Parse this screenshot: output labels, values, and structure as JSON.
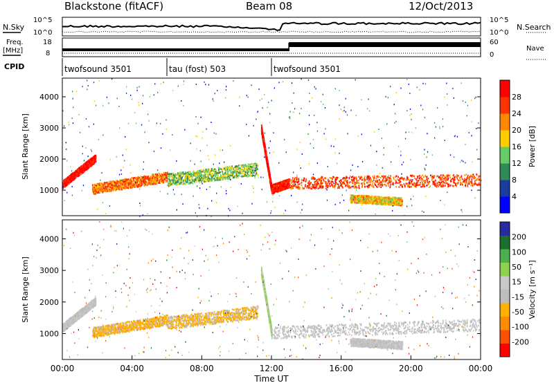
{
  "header": {
    "station": "Blackstone (fitACF)",
    "beam": "Beam 08",
    "date": "12/Oct/2013"
  },
  "side_labels": {
    "nsky": "N.Sky",
    "nsearch": "N.Search",
    "freq": "Freq.",
    "mhz": "[MHz]",
    "nave": "Nave",
    "cpid": "CPID"
  },
  "noise_axis": {
    "left_ticks": [
      "10^5",
      "10^0"
    ],
    "right_ticks": [
      "10^5",
      "10^0"
    ]
  },
  "freq_axis": {
    "left_ticks": [
      "18",
      "8"
    ],
    "right_ticks": [
      "60",
      "0"
    ]
  },
  "cpid_segments": [
    {
      "label": "twofsound 3501",
      "start_hour": 0
    },
    {
      "label": "tau (fost) 503",
      "start_hour": 6
    },
    {
      "label": "twofsound 3501",
      "start_hour": 12
    }
  ],
  "colors": {
    "power": [
      "#0000ff",
      "#1a3c9c",
      "#2e8b57",
      "#66cc66",
      "#ffcc00",
      "#ff8800",
      "#ff3300",
      "#ff0000"
    ],
    "velocity": [
      "#2a2aa0",
      "#1c6e2e",
      "#4caf50",
      "#8fd14f",
      "#c8c8c8",
      "#bdbdbd",
      "#ffb000",
      "#ff8c00",
      "#ff5000",
      "#ff0000"
    ],
    "ground_scatter": "#9e9e9e"
  },
  "chart_data": [
    {
      "type": "heatmap",
      "name": "power",
      "xlabel": "",
      "ylabel": "Slant Range [km]",
      "xlim": [
        0,
        24
      ],
      "ylim": [
        180,
        4600
      ],
      "yticks": [
        1000,
        2000,
        3000,
        4000
      ],
      "colorbar": {
        "label": "Power [dB]",
        "ticks": [
          "4",
          "8",
          "12",
          "16",
          "20",
          "24",
          "28"
        ],
        "range": [
          0,
          30
        ]
      },
      "bands": [
        {
          "from": [
            0.0,
            1200
          ],
          "to": [
            1.9,
            2050
          ],
          "width": 250,
          "value": 28
        },
        {
          "from": [
            1.7,
            1050
          ],
          "to": [
            6.0,
            1450
          ],
          "width": 320,
          "value": 22
        },
        {
          "from": [
            6.0,
            1350
          ],
          "to": [
            11.2,
            1700
          ],
          "width": 400,
          "value": 13
        },
        {
          "from": [
            11.4,
            3000
          ],
          "to": [
            12.0,
            1050
          ],
          "width": 250,
          "value": 29
        },
        {
          "from": [
            12.0,
            1050
          ],
          "to": [
            13.0,
            1250
          ],
          "width": 280,
          "value": 27
        },
        {
          "from": [
            13.0,
            1250
          ],
          "to": [
            24.0,
            1350
          ],
          "width": 380,
          "value": 24
        },
        {
          "from": [
            16.5,
            750
          ],
          "to": [
            19.5,
            650
          ],
          "width": 250,
          "value": 18
        }
      ]
    },
    {
      "type": "heatmap",
      "name": "velocity",
      "xlabel": "Time UT",
      "ylabel": "Slant Range [km]",
      "xlim": [
        0,
        24
      ],
      "ylim": [
        180,
        4600
      ],
      "yticks": [
        1000,
        2000,
        3000,
        4000
      ],
      "xticks": [
        "00:00",
        "04:00",
        "08:00",
        "12:00",
        "16:00",
        "20:00",
        "00:00"
      ],
      "colorbar": {
        "label": "Velocity [m s⁻¹]",
        "ticks": [
          "200",
          "100",
          "50",
          "15",
          "-15",
          "-50",
          "-100",
          "-200"
        ],
        "range": [
          -250,
          250
        ]
      },
      "bands": [
        {
          "from": [
            0.0,
            1200
          ],
          "to": [
            1.9,
            2050
          ],
          "width": 250,
          "value": 0
        },
        {
          "from": [
            1.7,
            1050
          ],
          "to": [
            6.0,
            1450
          ],
          "width": 320,
          "value": -70
        },
        {
          "from": [
            6.0,
            1350
          ],
          "to": [
            11.2,
            1700
          ],
          "width": 400,
          "value": -60
        },
        {
          "from": [
            11.4,
            3000
          ],
          "to": [
            12.0,
            1050
          ],
          "width": 250,
          "value": 60
        },
        {
          "from": [
            12.0,
            1050
          ],
          "to": [
            24.0,
            1300
          ],
          "width": 380,
          "value": 0
        },
        {
          "from": [
            16.5,
            750
          ],
          "to": [
            19.5,
            650
          ],
          "width": 250,
          "value": 0
        }
      ]
    }
  ]
}
